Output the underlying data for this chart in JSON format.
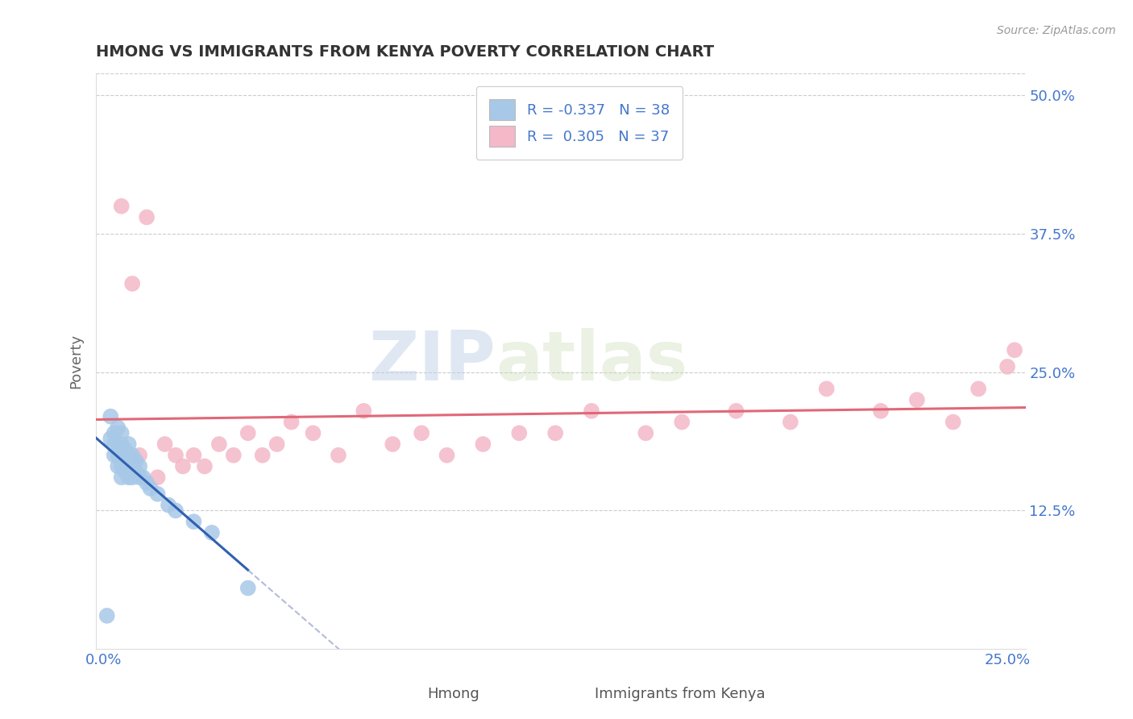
{
  "title": "HMONG VS IMMIGRANTS FROM KENYA POVERTY CORRELATION CHART",
  "source": "Source: ZipAtlas.com",
  "xlabel_hmong": "Hmong",
  "xlabel_kenya": "Immigrants from Kenya",
  "ylabel": "Poverty",
  "xlim": [
    -0.002,
    0.255
  ],
  "ylim": [
    0.0,
    0.52
  ],
  "ytick_values": [
    0.125,
    0.25,
    0.375,
    0.5
  ],
  "xtick_values": [
    0.0,
    0.25
  ],
  "r_hmong": -0.337,
  "n_hmong": 38,
  "r_kenya": 0.305,
  "n_kenya": 37,
  "color_hmong": "#a8c8e8",
  "color_kenya": "#f4b8c8",
  "line_color_hmong": "#3060b0",
  "line_color_kenya": "#e06878",
  "line_color_hmong_dash": "#8090c0",
  "watermark_zip": "ZIP",
  "watermark_atlas": "atlas",
  "background_color": "#ffffff",
  "grid_color": "#cccccc",
  "hmong_x": [
    0.001,
    0.002,
    0.002,
    0.003,
    0.003,
    0.003,
    0.004,
    0.004,
    0.004,
    0.004,
    0.005,
    0.005,
    0.005,
    0.005,
    0.005,
    0.006,
    0.006,
    0.006,
    0.007,
    0.007,
    0.007,
    0.007,
    0.008,
    0.008,
    0.008,
    0.009,
    0.009,
    0.01,
    0.01,
    0.011,
    0.012,
    0.013,
    0.015,
    0.018,
    0.02,
    0.025,
    0.03,
    0.04
  ],
  "hmong_y": [
    0.03,
    0.19,
    0.21,
    0.175,
    0.185,
    0.195,
    0.165,
    0.175,
    0.185,
    0.2,
    0.155,
    0.165,
    0.175,
    0.185,
    0.195,
    0.16,
    0.17,
    0.18,
    0.155,
    0.165,
    0.175,
    0.185,
    0.155,
    0.165,
    0.175,
    0.16,
    0.17,
    0.155,
    0.165,
    0.155,
    0.15,
    0.145,
    0.14,
    0.13,
    0.125,
    0.115,
    0.105,
    0.055
  ],
  "kenya_x": [
    0.005,
    0.008,
    0.01,
    0.012,
    0.015,
    0.017,
    0.02,
    0.022,
    0.025,
    0.028,
    0.032,
    0.036,
    0.04,
    0.044,
    0.048,
    0.052,
    0.058,
    0.065,
    0.072,
    0.08,
    0.088,
    0.095,
    0.105,
    0.115,
    0.125,
    0.135,
    0.15,
    0.16,
    0.175,
    0.19,
    0.2,
    0.215,
    0.225,
    0.235,
    0.242,
    0.25,
    0.252
  ],
  "kenya_y": [
    0.4,
    0.33,
    0.175,
    0.39,
    0.155,
    0.185,
    0.175,
    0.165,
    0.175,
    0.165,
    0.185,
    0.175,
    0.195,
    0.175,
    0.185,
    0.205,
    0.195,
    0.175,
    0.215,
    0.185,
    0.195,
    0.175,
    0.185,
    0.195,
    0.195,
    0.215,
    0.195,
    0.205,
    0.215,
    0.205,
    0.235,
    0.215,
    0.225,
    0.205,
    0.235,
    0.255,
    0.27
  ]
}
